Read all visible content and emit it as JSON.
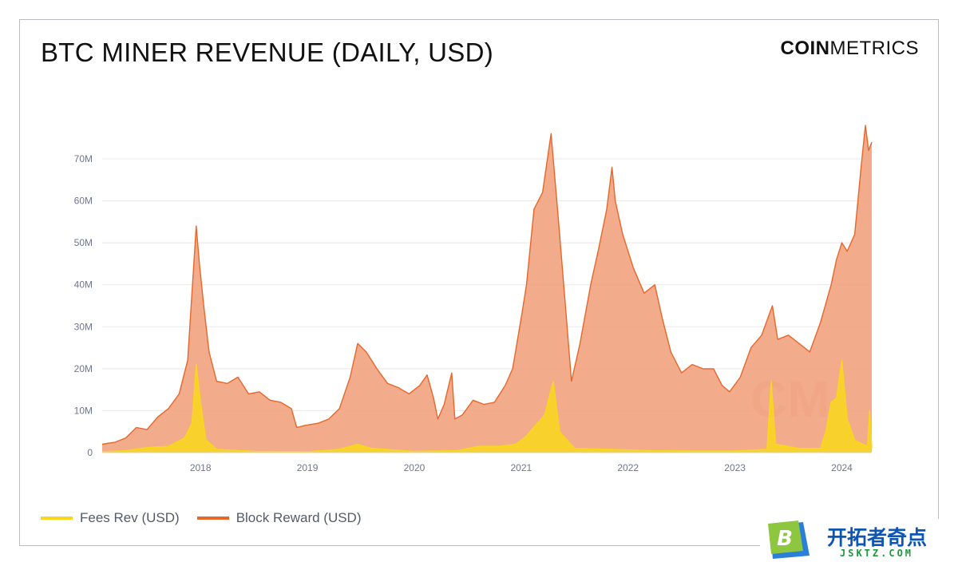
{
  "header": {
    "title": "BTC MINER REVENUE (DAILY, USD)",
    "logo_bold": "COIN",
    "logo_light": "METRICS"
  },
  "legend": {
    "fees_label": "Fees Rev (USD)",
    "reward_label": "Block Reward (USD)"
  },
  "colors": {
    "fees": "#f9d71c",
    "reward": "#e7672a",
    "reward_fill": "#f1a27e",
    "grid": "#e6e8ec",
    "tick_text": "#6f7591"
  },
  "brand": {
    "name": "开拓者奇点",
    "domain": "JSKTZ.COM",
    "icon_letter": "B"
  },
  "chart_data": {
    "type": "area",
    "title": "BTC MINER REVENUE (DAILY, USD)",
    "xlabel": "",
    "ylabel": "",
    "y_ticks": [
      "0",
      "10M",
      "20M",
      "30M",
      "40M",
      "50M",
      "60M",
      "70M"
    ],
    "y_tick_values": [
      0,
      10,
      20,
      30,
      40,
      50,
      60,
      70
    ],
    "x_ticks": [
      "2018",
      "2019",
      "2020",
      "2021",
      "2022",
      "2023",
      "2024"
    ],
    "x_tick_values": [
      2018,
      2019,
      2020,
      2021,
      2022,
      2023,
      2024
    ],
    "xlim": [
      2017.08,
      2024.28
    ],
    "ylim": [
      0,
      80
    ],
    "grid": "horizontal",
    "legend_position": "bottom-left",
    "series": [
      {
        "name": "Block Reward (USD)",
        "unit": "USD millions",
        "points": [
          [
            2017.08,
            2.0
          ],
          [
            2017.2,
            2.5
          ],
          [
            2017.3,
            3.5
          ],
          [
            2017.4,
            6.0
          ],
          [
            2017.5,
            5.5
          ],
          [
            2017.6,
            8.5
          ],
          [
            2017.7,
            10.5
          ],
          [
            2017.8,
            14.0
          ],
          [
            2017.88,
            22.0
          ],
          [
            2017.93,
            42.0
          ],
          [
            2017.96,
            54.0
          ],
          [
            2017.99,
            45.0
          ],
          [
            2018.03,
            35.0
          ],
          [
            2018.08,
            24.0
          ],
          [
            2018.15,
            17.0
          ],
          [
            2018.25,
            16.5
          ],
          [
            2018.35,
            18.0
          ],
          [
            2018.45,
            14.0
          ],
          [
            2018.55,
            14.5
          ],
          [
            2018.65,
            12.5
          ],
          [
            2018.75,
            12.0
          ],
          [
            2018.85,
            10.5
          ],
          [
            2018.9,
            6.0
          ],
          [
            2018.98,
            6.5
          ],
          [
            2019.1,
            7.0
          ],
          [
            2019.2,
            8.0
          ],
          [
            2019.3,
            10.5
          ],
          [
            2019.4,
            18.0
          ],
          [
            2019.47,
            26.0
          ],
          [
            2019.55,
            24.0
          ],
          [
            2019.65,
            20.0
          ],
          [
            2019.75,
            16.5
          ],
          [
            2019.85,
            15.5
          ],
          [
            2019.95,
            14.0
          ],
          [
            2020.05,
            16.0
          ],
          [
            2020.12,
            18.5
          ],
          [
            2020.18,
            13.0
          ],
          [
            2020.22,
            8.0
          ],
          [
            2020.28,
            11.5
          ],
          [
            2020.35,
            19.0
          ],
          [
            2020.38,
            8.0
          ],
          [
            2020.45,
            9.0
          ],
          [
            2020.55,
            12.5
          ],
          [
            2020.65,
            11.5
          ],
          [
            2020.75,
            12.0
          ],
          [
            2020.85,
            16.0
          ],
          [
            2020.92,
            20.0
          ],
          [
            2021.0,
            32.0
          ],
          [
            2021.05,
            40.0
          ],
          [
            2021.12,
            58.0
          ],
          [
            2021.2,
            62.0
          ],
          [
            2021.28,
            76.0
          ],
          [
            2021.35,
            55.0
          ],
          [
            2021.42,
            33.0
          ],
          [
            2021.47,
            17.0
          ],
          [
            2021.55,
            26.0
          ],
          [
            2021.65,
            40.0
          ],
          [
            2021.72,
            48.0
          ],
          [
            2021.8,
            58.0
          ],
          [
            2021.85,
            68.0
          ],
          [
            2021.88,
            60.0
          ],
          [
            2021.95,
            52.0
          ],
          [
            2022.05,
            44.0
          ],
          [
            2022.15,
            38.0
          ],
          [
            2022.25,
            40.0
          ],
          [
            2022.32,
            32.0
          ],
          [
            2022.4,
            24.0
          ],
          [
            2022.5,
            19.0
          ],
          [
            2022.6,
            21.0
          ],
          [
            2022.7,
            20.0
          ],
          [
            2022.8,
            20.0
          ],
          [
            2022.88,
            16.0
          ],
          [
            2022.95,
            14.5
          ],
          [
            2023.05,
            18.0
          ],
          [
            2023.15,
            25.0
          ],
          [
            2023.25,
            28.0
          ],
          [
            2023.35,
            35.0
          ],
          [
            2023.4,
            27.0
          ],
          [
            2023.5,
            28.0
          ],
          [
            2023.6,
            26.0
          ],
          [
            2023.7,
            24.0
          ],
          [
            2023.8,
            31.0
          ],
          [
            2023.9,
            40.0
          ],
          [
            2023.95,
            46.0
          ],
          [
            2024.0,
            50.0
          ],
          [
            2024.05,
            48.0
          ],
          [
            2024.12,
            52.0
          ],
          [
            2024.18,
            68.0
          ],
          [
            2024.22,
            78.0
          ],
          [
            2024.25,
            72.0
          ],
          [
            2024.28,
            74.0
          ]
        ]
      },
      {
        "name": "Fees Rev (USD)",
        "unit": "USD millions",
        "points": [
          [
            2017.08,
            0.2
          ],
          [
            2017.3,
            0.5
          ],
          [
            2017.5,
            1.2
          ],
          [
            2017.7,
            1.5
          ],
          [
            2017.85,
            3.5
          ],
          [
            2017.92,
            7.0
          ],
          [
            2017.96,
            21.0
          ],
          [
            2018.0,
            12.0
          ],
          [
            2018.05,
            3.0
          ],
          [
            2018.15,
            0.8
          ],
          [
            2018.5,
            0.3
          ],
          [
            2019.0,
            0.2
          ],
          [
            2019.3,
            0.8
          ],
          [
            2019.47,
            2.0
          ],
          [
            2019.6,
            1.0
          ],
          [
            2020.0,
            0.3
          ],
          [
            2020.4,
            0.5
          ],
          [
            2020.6,
            1.5
          ],
          [
            2020.8,
            1.5
          ],
          [
            2020.95,
            2.0
          ],
          [
            2021.05,
            4.0
          ],
          [
            2021.15,
            7.0
          ],
          [
            2021.22,
            9.0
          ],
          [
            2021.3,
            17.0
          ],
          [
            2021.36,
            5.0
          ],
          [
            2021.5,
            1.0
          ],
          [
            2021.8,
            0.8
          ],
          [
            2022.2,
            0.5
          ],
          [
            2022.6,
            0.4
          ],
          [
            2023.0,
            0.4
          ],
          [
            2023.3,
            0.8
          ],
          [
            2023.34,
            17.0
          ],
          [
            2023.38,
            2.0
          ],
          [
            2023.6,
            1.0
          ],
          [
            2023.8,
            1.0
          ],
          [
            2023.85,
            5.0
          ],
          [
            2023.9,
            12.0
          ],
          [
            2023.95,
            13.0
          ],
          [
            2024.0,
            22.0
          ],
          [
            2024.05,
            8.0
          ],
          [
            2024.12,
            3.0
          ],
          [
            2024.2,
            2.0
          ],
          [
            2024.24,
            1.5
          ],
          [
            2024.26,
            10.0
          ],
          [
            2024.28,
            1.0
          ]
        ]
      }
    ]
  }
}
